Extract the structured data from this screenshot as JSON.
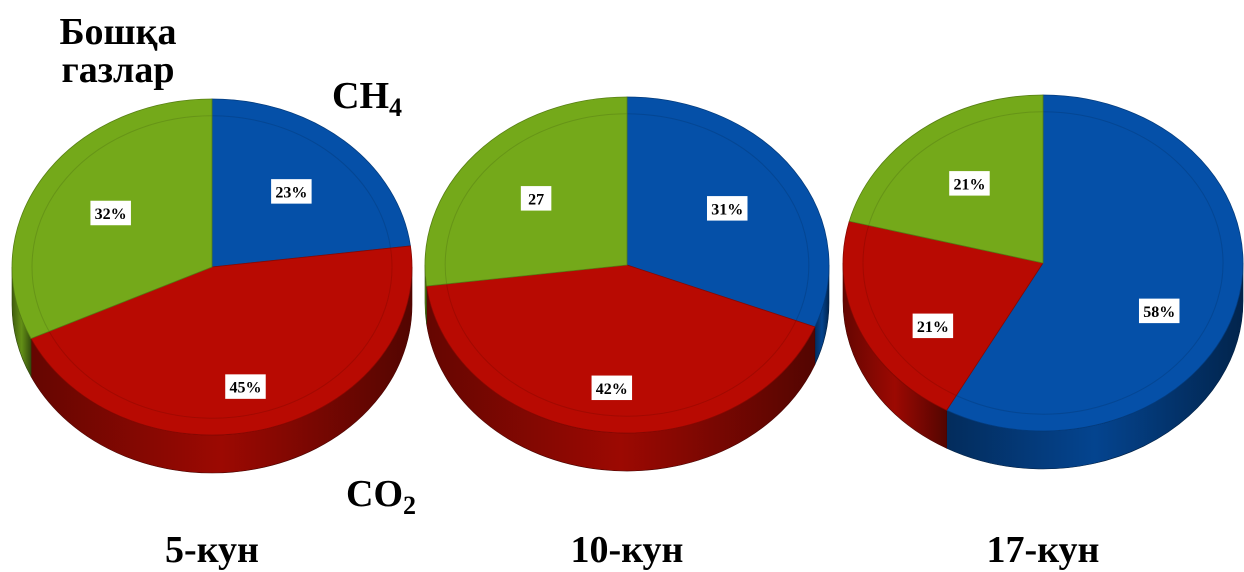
{
  "legend_labels": {
    "other": [
      "Бошқа",
      "газлар"
    ],
    "ch4": {
      "base": "CH",
      "sub": "4"
    },
    "co2": {
      "base": "CO",
      "sub": "2"
    }
  },
  "colors": {
    "ch4": "#0550a8",
    "co2": "#b80a02",
    "other": "#74a91a"
  },
  "chart_data": [
    {
      "type": "pie",
      "title": "5-кун",
      "slices": [
        {
          "name": "CH4",
          "value": 23,
          "label": "23%"
        },
        {
          "name": "CO2",
          "value": 45,
          "label": "45%"
        },
        {
          "name": "Бошқа газлар",
          "value": 32,
          "label": "32%"
        }
      ]
    },
    {
      "type": "pie",
      "title": "10-кун",
      "slices": [
        {
          "name": "CH4",
          "value": 31,
          "label": "31%"
        },
        {
          "name": "CO2",
          "value": 42,
          "label": "42%"
        },
        {
          "name": "Бошқа газлар",
          "value": 27,
          "label": "27"
        }
      ]
    },
    {
      "type": "pie",
      "title": "17-кун",
      "slices": [
        {
          "name": "CH4",
          "value": 58,
          "label": "58%"
        },
        {
          "name": "CO2",
          "value": 21,
          "label": "21%"
        },
        {
          "name": "Бошқа газлар",
          "value": 21,
          "label": "21%"
        }
      ]
    }
  ]
}
